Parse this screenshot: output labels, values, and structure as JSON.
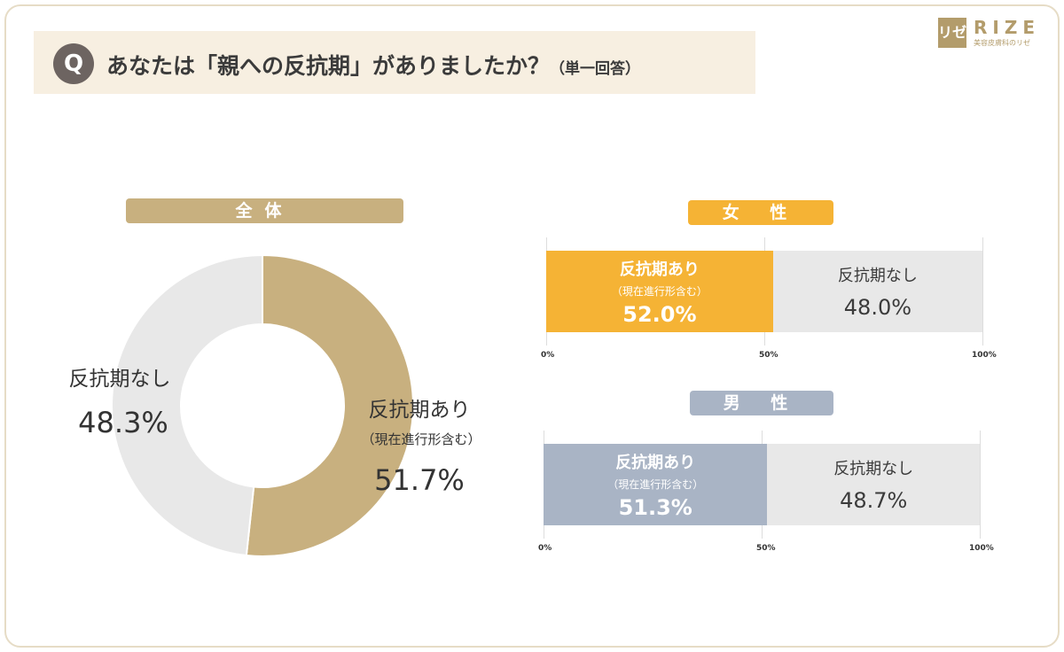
{
  "header": {
    "q_badge": "Q",
    "title": "あなたは「親への反抗期」がありましたか？",
    "note": "（単一回答）"
  },
  "logo": {
    "mark": "リゼ",
    "name": "RIZE",
    "tagline": "美容皮膚科のリゼ"
  },
  "colors": {
    "overall": "#c8b07f",
    "female": "#f5b335",
    "male": "#a9b4c5",
    "none": "#e8e8e8"
  },
  "chart_data": [
    {
      "type": "pie",
      "title": "全体",
      "categories": [
        "反抗期あり（現在進行形含む）",
        "反抗期なし"
      ],
      "values": [
        51.7,
        48.3
      ],
      "labels": {
        "yes": "反抗期あり",
        "yes_sub": "（現在進行形含む）",
        "yes_value": "51.7%",
        "no": "反抗期なし",
        "no_value": "48.3%"
      }
    },
    {
      "type": "bar",
      "title": "女 性",
      "categories": [
        "反抗期あり（現在進行形含む）",
        "反抗期なし"
      ],
      "values": [
        52.0,
        48.0
      ],
      "ticks": [
        "0%",
        "50%",
        "100%"
      ],
      "labels": {
        "yes": "反抗期あり",
        "yes_sub": "（現在進行形含む）",
        "yes_value": "52.0%",
        "no": "反抗期なし",
        "no_value": "48.0%"
      }
    },
    {
      "type": "bar",
      "title": "男 性",
      "categories": [
        "反抗期あり（現在進行形含む）",
        "反抗期なし"
      ],
      "values": [
        51.3,
        48.7
      ],
      "ticks": [
        "0%",
        "50%",
        "100%"
      ],
      "labels": {
        "yes": "反抗期あり",
        "yes_sub": "（現在進行形含む）",
        "yes_value": "51.3%",
        "no": "反抗期なし",
        "no_value": "48.7%"
      }
    }
  ]
}
